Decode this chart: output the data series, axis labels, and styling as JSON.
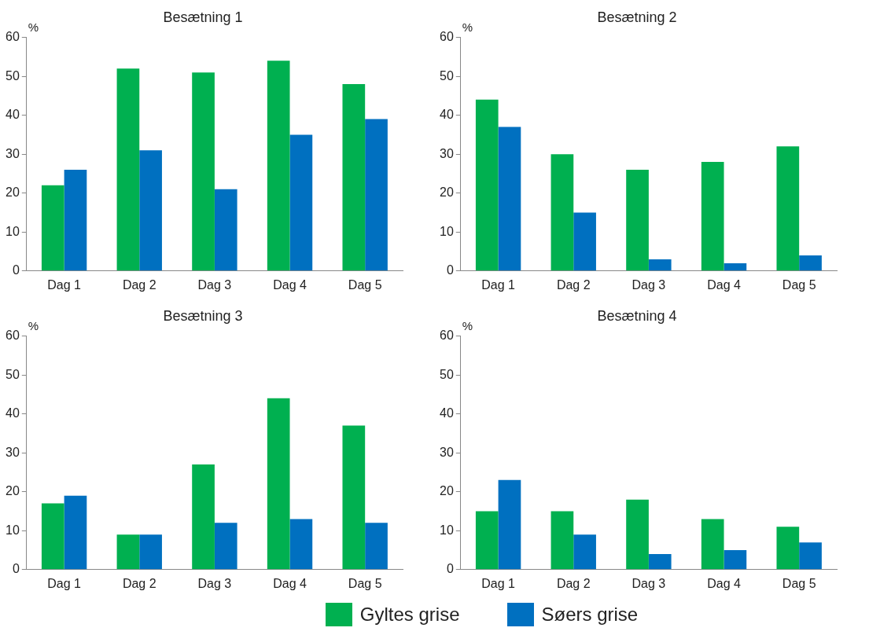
{
  "chart_data": [
    {
      "type": "bar",
      "title": "Besætning 1",
      "ylabel": "%",
      "categories": [
        "Dag 1",
        "Dag 2",
        "Dag 3",
        "Dag 4",
        "Dag 5"
      ],
      "ylim": [
        0,
        60
      ],
      "yticks": [
        0,
        10,
        20,
        30,
        40,
        50,
        60
      ],
      "grid": false,
      "series": [
        {
          "color": "#00b050",
          "values": [
            22,
            52,
            51,
            54,
            48
          ]
        },
        {
          "color": "#0070c0",
          "values": [
            26,
            31,
            21,
            35,
            39
          ]
        }
      ]
    },
    {
      "type": "bar",
      "title": "Besætning 2",
      "ylabel": "%",
      "categories": [
        "Dag 1",
        "Dag 2",
        "Dag 3",
        "Dag 4",
        "Dag 5"
      ],
      "ylim": [
        0,
        60
      ],
      "yticks": [
        0,
        10,
        20,
        30,
        40,
        50,
        60
      ],
      "grid": false,
      "series": [
        {
          "color": "#00b050",
          "values": [
            44,
            30,
            26,
            28,
            32
          ]
        },
        {
          "color": "#0070c0",
          "values": [
            37,
            15,
            3,
            2,
            4
          ]
        }
      ]
    },
    {
      "type": "bar",
      "title": "Besætning 3",
      "ylabel": "%",
      "categories": [
        "Dag 1",
        "Dag 2",
        "Dag 3",
        "Dag 4",
        "Dag 5"
      ],
      "ylim": [
        0,
        60
      ],
      "yticks": [
        0,
        10,
        20,
        30,
        40,
        50,
        60
      ],
      "grid": false,
      "series": [
        {
          "color": "#00b050",
          "values": [
            17,
            9,
            27,
            44,
            37
          ]
        },
        {
          "color": "#0070c0",
          "values": [
            19,
            9,
            12,
            13,
            12
          ]
        }
      ]
    },
    {
      "type": "bar",
      "title": "Besætning 4",
      "ylabel": "%",
      "categories": [
        "Dag 1",
        "Dag 2",
        "Dag 3",
        "Dag 4",
        "Dag 5"
      ],
      "ylim": [
        0,
        60
      ],
      "yticks": [
        0,
        10,
        20,
        30,
        40,
        50,
        60
      ],
      "grid": false,
      "legend": "bottom",
      "series": [
        {
          "name": "Gyltes grise",
          "color": "#00b050",
          "values": [
            15,
            15,
            18,
            13,
            11
          ]
        },
        {
          "name": "Søers grise",
          "color": "#0070c0",
          "values": [
            23,
            9,
            4,
            5,
            7
          ]
        }
      ]
    }
  ]
}
